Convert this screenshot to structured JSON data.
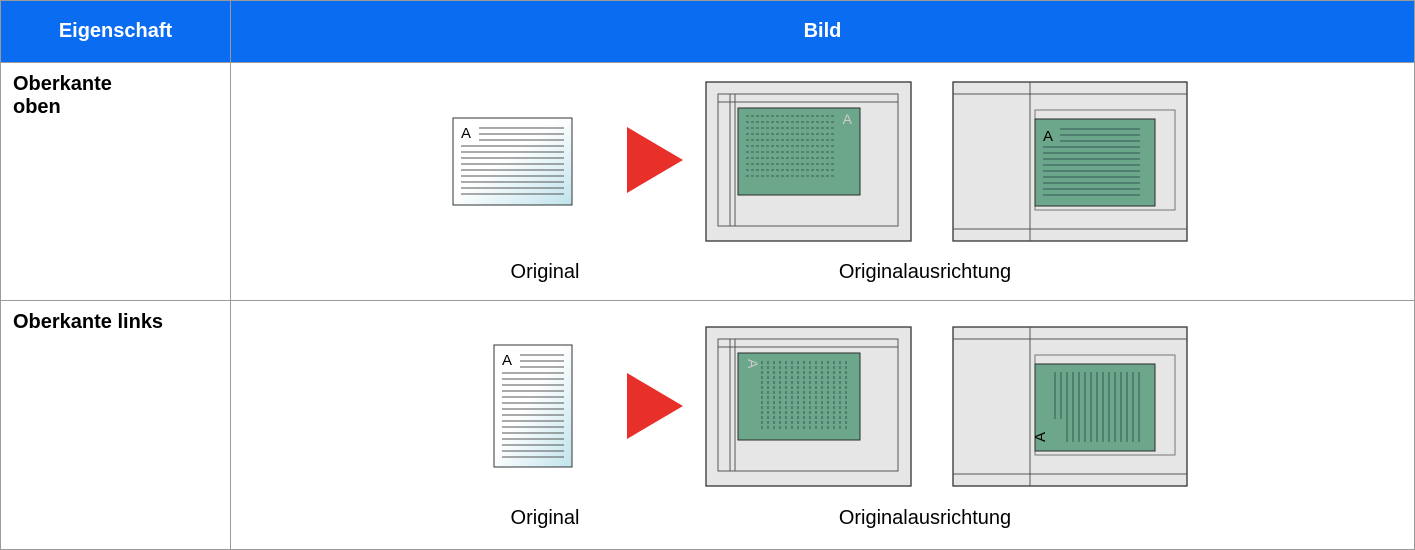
{
  "table": {
    "header": [
      "Eigenschaft",
      "Bild"
    ],
    "rows": [
      {
        "label": "Oberkante oben",
        "captions": [
          "Original",
          "Originalausrichtung"
        ],
        "letters": [
          "A",
          "A",
          "A"
        ]
      },
      {
        "label": "Oberkante links",
        "captions": [
          "Original",
          "Originalausrichtung"
        ],
        "letters": [
          "A",
          "A",
          "A"
        ]
      }
    ]
  }
}
